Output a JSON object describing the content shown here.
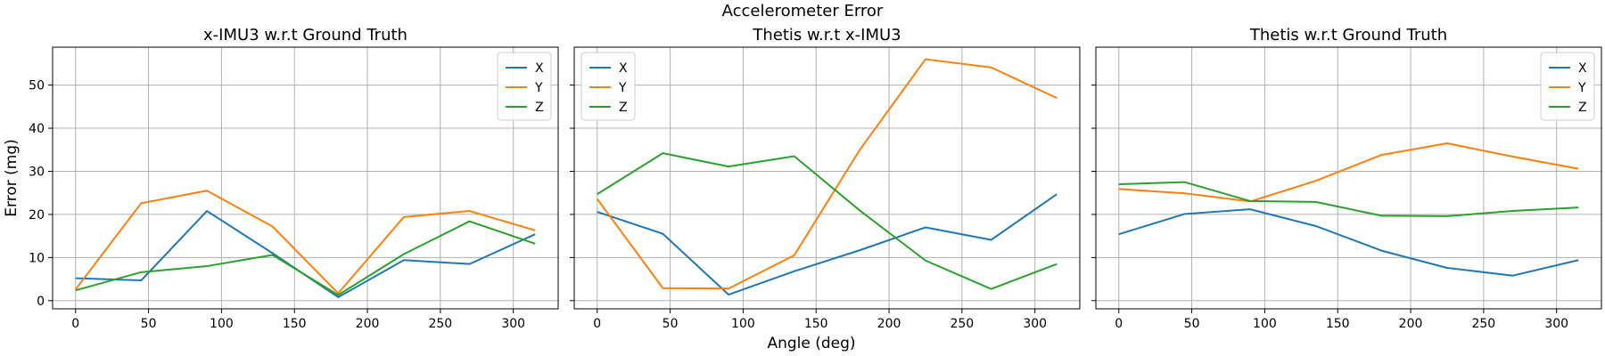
{
  "figure": {
    "suptitle": "Accelerometer Error",
    "xlabel": "Angle (deg)",
    "ylabel": "Error (mg)"
  },
  "chart_data": [
    {
      "type": "line",
      "title": "x-IMU3 w.r.t Ground Truth",
      "x": [
        0,
        45,
        90,
        135,
        180,
        225,
        270,
        315
      ],
      "series": [
        {
          "name": "X",
          "color": "#1f77b4",
          "values": [
            5.2,
            4.7,
            20.8,
            11.0,
            0.8,
            9.4,
            8.5,
            15.4
          ]
        },
        {
          "name": "Y",
          "color": "#ff7f0e",
          "values": [
            2.6,
            22.6,
            25.5,
            17.2,
            1.7,
            19.4,
            20.8,
            16.3
          ]
        },
        {
          "name": "Z",
          "color": "#2ca02c",
          "values": [
            2.4,
            6.6,
            8.0,
            10.6,
            1.3,
            10.8,
            18.4,
            13.2
          ]
        }
      ],
      "xticks": [
        0,
        50,
        100,
        150,
        200,
        250,
        300
      ],
      "yticks": [
        0,
        10,
        20,
        30,
        40,
        50
      ],
      "xlim": [
        -15.75,
        330.75
      ],
      "ylim": [
        -1.9,
        58.8
      ],
      "grid": true,
      "legend": "top-right",
      "show_yticklabels": true
    },
    {
      "type": "line",
      "title": "Thetis w.r.t x-IMU3",
      "x": [
        0,
        45,
        90,
        135,
        180,
        225,
        270,
        315
      ],
      "series": [
        {
          "name": "X",
          "color": "#1f77b4",
          "values": [
            20.6,
            15.5,
            1.4,
            6.8,
            11.7,
            17.0,
            14.1,
            24.7
          ]
        },
        {
          "name": "Y",
          "color": "#ff7f0e",
          "values": [
            23.6,
            2.9,
            2.8,
            10.5,
            35.0,
            56.0,
            54.1,
            47.0
          ]
        },
        {
          "name": "Z",
          "color": "#2ca02c",
          "values": [
            24.7,
            34.2,
            31.1,
            33.5,
            20.9,
            9.3,
            2.7,
            8.5
          ]
        }
      ],
      "xticks": [
        0,
        50,
        100,
        150,
        200,
        250,
        300
      ],
      "yticks": [
        0,
        10,
        20,
        30,
        40,
        50
      ],
      "xlim": [
        -15.75,
        330.75
      ],
      "ylim": [
        -1.9,
        58.8
      ],
      "grid": true,
      "legend": "top-left",
      "show_yticklabels": false
    },
    {
      "type": "line",
      "title": "Thetis w.r.t Ground Truth",
      "x": [
        0,
        45,
        90,
        135,
        180,
        225,
        270,
        315
      ],
      "series": [
        {
          "name": "X",
          "color": "#1f77b4",
          "values": [
            15.4,
            20.1,
            21.2,
            17.3,
            11.6,
            7.6,
            5.8,
            9.4
          ]
        },
        {
          "name": "Y",
          "color": "#ff7f0e",
          "values": [
            25.9,
            24.9,
            23.0,
            27.8,
            33.8,
            36.5,
            33.4,
            30.6
          ]
        },
        {
          "name": "Z",
          "color": "#2ca02c",
          "values": [
            27.0,
            27.5,
            23.1,
            22.9,
            19.7,
            19.6,
            20.8,
            21.6
          ]
        }
      ],
      "xticks": [
        0,
        50,
        100,
        150,
        200,
        250,
        300
      ],
      "yticks": [
        0,
        10,
        20,
        30,
        40,
        50
      ],
      "xlim": [
        -15.75,
        330.75
      ],
      "ylim": [
        -1.9,
        58.8
      ],
      "grid": true,
      "legend": "top-right",
      "show_yticklabels": false
    }
  ]
}
